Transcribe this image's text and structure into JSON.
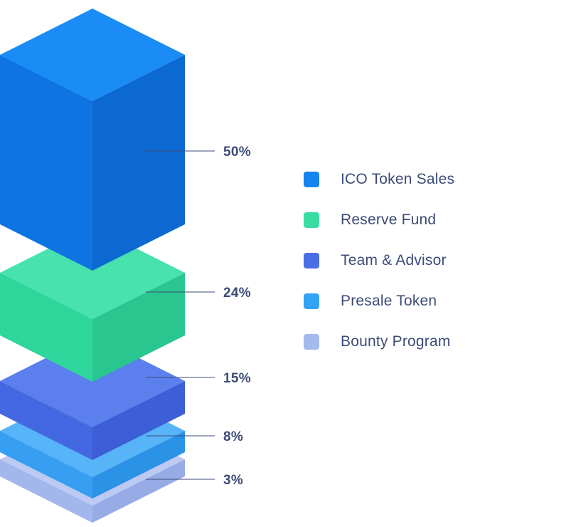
{
  "chart_data": {
    "type": "bar",
    "variant": "isometric-stacked-allocation",
    "categories": [
      "ICO Token Sales",
      "Reserve Fund",
      "Team & Advisor",
      "Presale Token",
      "Bounty Program"
    ],
    "values": [
      50,
      24,
      15,
      8,
      3
    ],
    "value_labels": [
      "50%",
      "24%",
      "15%",
      "8%",
      "3%"
    ],
    "unit": "%",
    "legend_position": "right",
    "text_color": "#3d4b78",
    "leader_line_color": "#3d4b78",
    "series_colors": [
      {
        "name": "ICO Token Sales",
        "swatch": "#1584ee",
        "top": "#1b8cf5",
        "left": "#0e74e4",
        "right": "#0c69d2"
      },
      {
        "name": "Reserve Fund",
        "swatch": "#3bdca4",
        "top": "#48e2ae",
        "left": "#2fd69c",
        "right": "#29c78f"
      },
      {
        "name": "Team & Advisor",
        "swatch": "#4a6ee5",
        "top": "#5b80ee",
        "left": "#4468e2",
        "right": "#3c5ed6"
      },
      {
        "name": "Presale Token",
        "swatch": "#33a3f5",
        "top": "#58b4f8",
        "left": "#369ff2",
        "right": "#2b93e6"
      },
      {
        "name": "Bounty Program",
        "swatch": "#a4b9ee",
        "top": "#bcc9f2",
        "left": "#a2b7ec",
        "right": "#97ace6"
      }
    ]
  }
}
